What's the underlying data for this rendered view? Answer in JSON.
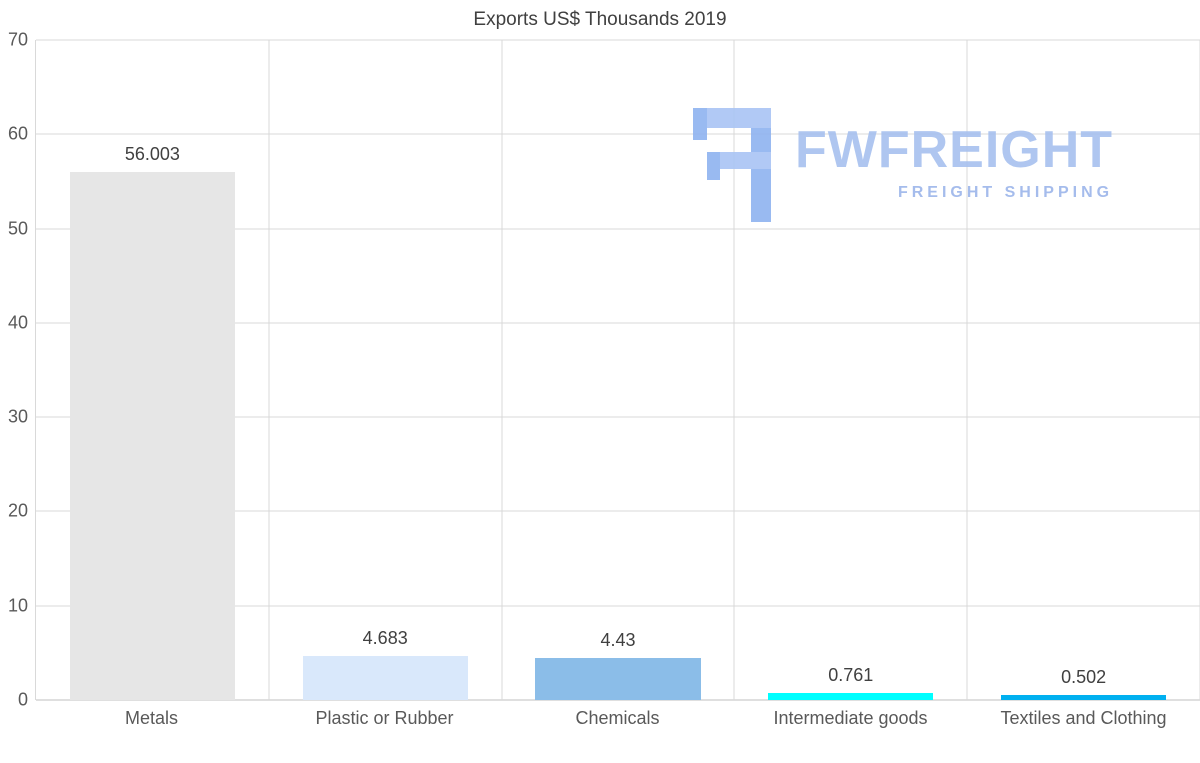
{
  "title": "Exports US$ Thousands 2019",
  "watermark": {
    "brand": "FWFREIGHT",
    "tagline": "FREIGHT SHIPPING",
    "icon": "fwfreight-logo-icon",
    "color": "#a7c0ef"
  },
  "chart_data": {
    "type": "bar",
    "title": "Exports US$ Thousands 2019",
    "categories": [
      "Metals",
      "Plastic or Rubber",
      "Chemicals",
      "Intermediate goods",
      "Textiles and Clothing"
    ],
    "values": [
      56.003,
      4.683,
      4.43,
      0.761,
      0.502
    ],
    "value_labels": [
      "56.003",
      "4.683",
      "4.43",
      "0.761",
      "0.502"
    ],
    "bar_colors": [
      "#e6e6e6",
      "#d9e8fb",
      "#8bbde8",
      "#00ffff",
      "#00b0f0"
    ],
    "xlabel": "",
    "ylabel": "",
    "ylim": [
      0,
      70
    ],
    "yticks": [
      0,
      10,
      20,
      30,
      40,
      50,
      60,
      70
    ],
    "grid": true,
    "legend": false,
    "gridline_color": "#d9d9d9",
    "axis_text_color": "#595959",
    "label_text_color": "#404040"
  }
}
